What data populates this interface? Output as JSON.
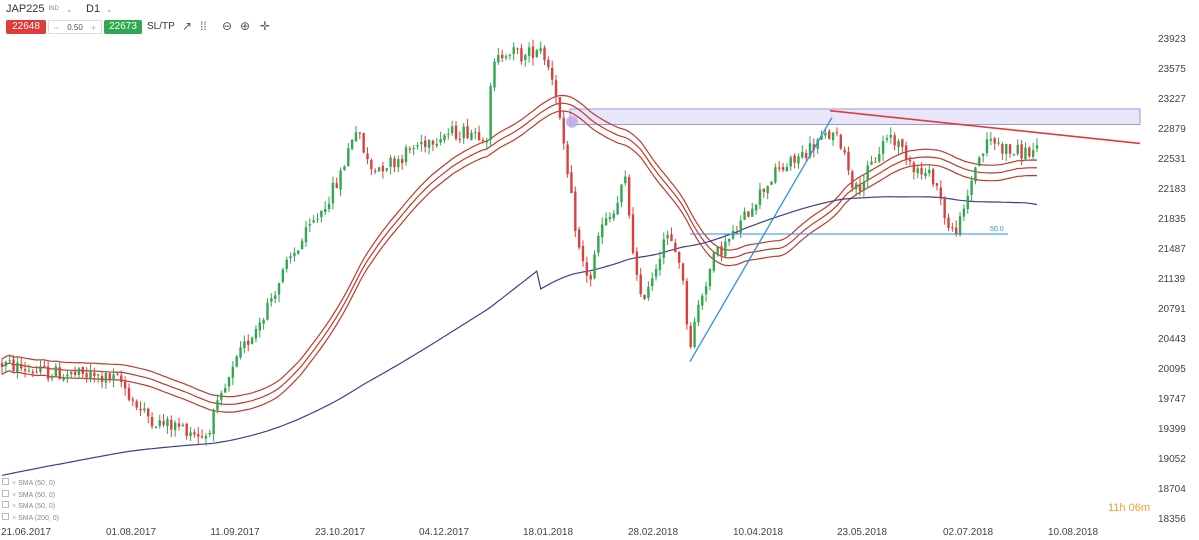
{
  "toolbar": {
    "symbol": "JAP225",
    "symbol_sub": "IND",
    "timeframe": "D1",
    "sell_price": "22648",
    "spread": "0.50",
    "buy_price": "22673",
    "sltp_label": "SL/TP",
    "minus": "−",
    "plus": "+"
  },
  "timer": "11h 06m",
  "indicators": [
    "SMA (50, 0)",
    "SMA (50, 0)",
    "SMA (50, 0)",
    "SMA (200, 0)"
  ],
  "colors": {
    "bull": "#2fa84f",
    "bear": "#d9413d",
    "envelope": "#c0392b",
    "sma200": "#3f3f8f",
    "trend_up": "#2f8fe0",
    "trend_down": "#e03a3a",
    "zone": "#d9d6f5"
  },
  "chart_data": {
    "type": "candlestick",
    "y_ticks": [
      23923,
      23575,
      23227,
      22879,
      22531,
      22183,
      21835,
      21487,
      21139,
      20791,
      20443,
      20095,
      19747,
      19399,
      19052,
      18704,
      18356
    ],
    "ylim": [
      18356,
      24100
    ],
    "x_ticks": [
      "21.06.2017",
      "01.08.2017",
      "11.09.2017",
      "23.10.2017",
      "04.12.2017",
      "18.01.2018",
      "28.02.2018",
      "10.04.2018",
      "23.05.2018",
      "02.07.2018",
      "10.08.2018"
    ],
    "fib_label": "50.0",
    "fib_level": 21650,
    "resistance_zone": [
      22920,
      23100
    ],
    "candles_count": 270
  }
}
